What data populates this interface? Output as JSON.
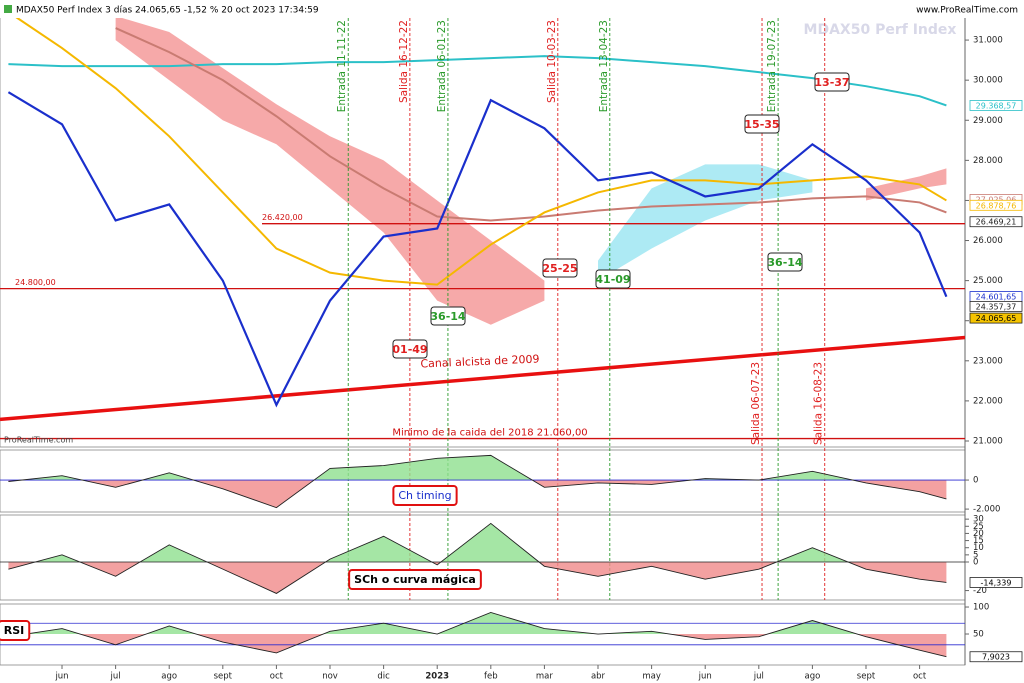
{
  "header": {
    "title": "MDAX50 Perf Index 3 días 24.065,65 -1,52 % 20 oct 2023 17:34:59",
    "source": "www.ProRealTime.com",
    "watermark": "MDAX50 Perf Index",
    "brand": "ProRealTime.com"
  },
  "chart_data": [
    {
      "type": "line",
      "x": [
        -1,
        0,
        1,
        2,
        3,
        4,
        5,
        6,
        7,
        8,
        9,
        10,
        11,
        12,
        13,
        14,
        15,
        16,
        16.5
      ],
      "xlim": [
        -1.157,
        16.847
      ],
      "xticks": [
        {
          "value": 0,
          "label": "jun"
        },
        {
          "value": 1,
          "label": "jul"
        },
        {
          "value": 2,
          "label": "ago"
        },
        {
          "value": 3,
          "label": "sept"
        },
        {
          "value": 4,
          "label": "oct"
        },
        {
          "value": 5,
          "label": "nov"
        },
        {
          "value": 6,
          "label": "dic"
        },
        {
          "value": 7,
          "label": "2023"
        },
        {
          "value": 8,
          "label": "feb"
        },
        {
          "value": 9,
          "label": "mar"
        },
        {
          "value": 10,
          "label": "abr"
        },
        {
          "value": 11,
          "label": "may"
        },
        {
          "value": 12,
          "label": "jun"
        },
        {
          "value": 13,
          "label": "jul"
        },
        {
          "value": 14,
          "label": "ago"
        },
        {
          "value": 15,
          "label": "sept"
        },
        {
          "value": 16,
          "label": "oct"
        }
      ],
      "ylim": [
        20850,
        31800
      ],
      "yticks": [
        {
          "value": 21000,
          "label": "21.000"
        },
        {
          "value": 22000,
          "label": "22.000"
        },
        {
          "value": 23000,
          "label": "23.000"
        },
        {
          "value": 24000,
          "label": "24.000"
        },
        {
          "value": 25000,
          "label": "25.000"
        },
        {
          "value": 26000,
          "label": "26.000"
        },
        {
          "value": 27000,
          "label": "27.000"
        },
        {
          "value": 28000,
          "label": "28.000"
        },
        {
          "value": 29000,
          "label": "29.000"
        },
        {
          "value": 30000,
          "label": "30.000"
        },
        {
          "value": 31000,
          "label": "31.000"
        }
      ],
      "clouds": [
        {
          "color": "#f59a9a",
          "upper": [
            null,
            null,
            31600,
            31200,
            30300,
            29400,
            28600,
            28000,
            27000,
            26000,
            25000,
            null,
            null,
            null,
            null,
            null,
            27300,
            27600,
            27800
          ],
          "lower": [
            null,
            null,
            31000,
            30000,
            29000,
            28400,
            27300,
            26200,
            24500,
            23900,
            24500,
            null,
            null,
            null,
            null,
            null,
            27000,
            27300,
            27400
          ]
        },
        {
          "color": "#9fe6f2",
          "upper": [
            null,
            null,
            null,
            null,
            null,
            null,
            null,
            null,
            null,
            null,
            null,
            25500,
            27300,
            27900,
            27900,
            27500,
            null,
            null,
            null
          ],
          "lower": [
            null,
            null,
            null,
            null,
            null,
            null,
            null,
            null,
            null,
            null,
            null,
            25000,
            25800,
            26500,
            27000,
            27200,
            null,
            null,
            null
          ]
        }
      ],
      "series": [
        {
          "color": "#2bc0c8",
          "width": 2,
          "values": [
            30400,
            30350,
            30350,
            30350,
            30400,
            30400,
            30450,
            30450,
            30500,
            30550,
            30600,
            30550,
            30450,
            30350,
            30200,
            30050,
            29850,
            29600,
            29368.57
          ]
        },
        {
          "color": "#c97b72",
          "width": 2,
          "values": [
            null,
            null,
            31300,
            30700,
            30000,
            29100,
            28100,
            27300,
            26600,
            26500,
            26600,
            26750,
            26850,
            26900,
            26950,
            27050,
            27100,
            26950,
            26700
          ]
        },
        {
          "color": "#f5b800",
          "width": 2,
          "values": [
            31700,
            30800,
            29800,
            28600,
            27200,
            25800,
            25200,
            25000,
            24900,
            25900,
            26700,
            27200,
            27500,
            27500,
            27400,
            27500,
            27600,
            27400,
            27000
          ]
        },
        {
          "color": "#1a2fcc",
          "width": 2.2,
          "values": [
            29700,
            28900,
            26500,
            26900,
            25000,
            21900,
            24500,
            26100,
            26300,
            29500,
            28800,
            27500,
            27700,
            27100,
            27300,
            28400,
            27500,
            26200,
            24600
          ]
        }
      ],
      "levels": [
        {
          "value": 26420,
          "label": "26.420,00"
        },
        {
          "value": 24800,
          "label": "24.800,00"
        },
        {
          "value": 21060,
          "label": "Minimo de la caida del 2018 21.060,00"
        }
      ],
      "trend": {
        "label": "Canal alcista de 2009",
        "values": [
          21540,
          23580
        ]
      },
      "signals": [
        {
          "x": 5.34,
          "label": "Entrada 11-11-22",
          "color": "#2a9a2a"
        },
        {
          "x": 6.49,
          "label": "Salida 16-12-22",
          "color": "#e02020"
        },
        {
          "x": 7.2,
          "label": "Entrada 06-01-23",
          "color": "#2a9a2a"
        },
        {
          "x": 9.25,
          "label": "Salida 10-03-23",
          "color": "#e02020"
        },
        {
          "x": 10.22,
          "label": "Entrada 13-04-23",
          "color": "#2a9a2a"
        },
        {
          "x": 13.36,
          "label": "Entrada 19-07-23",
          "color": "#2a9a2a"
        },
        {
          "x": 13.06,
          "label": "Salida 06-07-23",
          "color": "#e02020"
        },
        {
          "x": 14.23,
          "label": "Salida 16-08-23",
          "color": "#e02020"
        }
      ],
      "boxes": [
        {
          "text": "13-37",
          "color": "#e02020"
        },
        {
          "text": "15-35",
          "color": "#e02020"
        },
        {
          "text": "25-25",
          "color": "#e02020"
        },
        {
          "text": "01-49",
          "color": "#e02020"
        },
        {
          "text": "36-14",
          "color": "#2a9a2a"
        },
        {
          "text": "36-14",
          "color": "#2a9a2a"
        },
        {
          "text": "41-09",
          "color": "#2a9a2a"
        }
      ],
      "price_labels": [
        {
          "value": 29368.57,
          "label": "29.368,57",
          "color": "#2bc0c8"
        },
        {
          "value": 27025.06,
          "label": "27.025,06",
          "color": "#c97b72"
        },
        {
          "value": 26878.76,
          "label": "26.878,76",
          "color": "#f5b800"
        },
        {
          "value": 26469.21,
          "label": "26.469,21",
          "color": "#222"
        },
        {
          "value": 24601.65,
          "label": "24.601,65",
          "color": "#1a2fcc"
        },
        {
          "value": 24357.37,
          "label": "24.357,37",
          "color": "#222"
        },
        {
          "value": 24065.65,
          "label": "24.065,65",
          "color": "#222",
          "highlight": "#f5c400"
        }
      ]
    },
    {
      "type": "area",
      "name": "Ch timing",
      "ylim": [
        -2200,
        2070
      ],
      "yticks": [
        0,
        {
          "value": -2000,
          "label": "-2.000"
        }
      ],
      "values": [
        -100,
        300,
        -500,
        500,
        -600,
        -1900,
        800,
        1000,
        1500,
        1700,
        -500,
        -200,
        -300,
        100,
        0,
        600,
        -200,
        -800,
        -1300
      ]
    },
    {
      "type": "area",
      "name": "SCh o curva mágica",
      "ylim": [
        -26.6,
        32.9
      ],
      "yticks": [
        30,
        25,
        20,
        15,
        10,
        5,
        0,
        -20
      ],
      "values": [
        -5,
        5,
        -10,
        12,
        -5,
        -22,
        2,
        18,
        -2,
        27,
        -3,
        -10,
        -3,
        -12,
        -5,
        10,
        -5,
        -12,
        -14.339
      ],
      "value_labels": [
        null,
        null,
        null,
        null,
        null,
        null,
        null,
        null,
        null,
        null,
        null,
        null,
        null,
        null,
        null,
        null,
        null,
        null,
        "-14,339"
      ]
    },
    {
      "type": "rsi",
      "name": "RSI",
      "ylim": [
        -7.4,
        105.6
      ],
      "yticks": [
        100,
        50
      ],
      "bands": [
        70,
        30
      ],
      "values": [
        45,
        60,
        30,
        65,
        35,
        15,
        55,
        70,
        50,
        90,
        60,
        50,
        55,
        40,
        45,
        75,
        45,
        20,
        7.9023
      ],
      "value_labels": [
        null,
        null,
        null,
        null,
        null,
        null,
        null,
        null,
        null,
        null,
        null,
        null,
        null,
        null,
        null,
        null,
        null,
        null,
        "7,9023"
      ]
    }
  ]
}
